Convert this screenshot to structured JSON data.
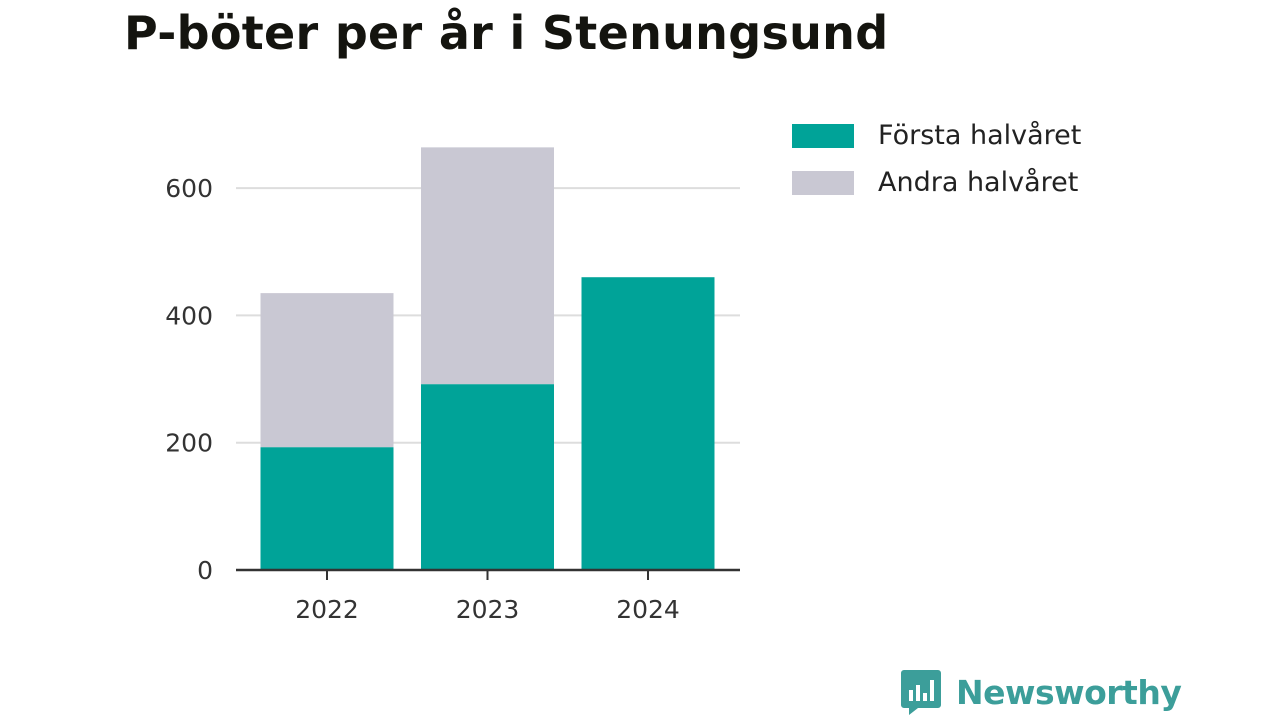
{
  "chart_data": {
    "type": "bar",
    "stacked": true,
    "title": "P-böter per år i Stenungsund",
    "categories": [
      "2022",
      "2023",
      "2024"
    ],
    "series": [
      {
        "name": "Första halvåret",
        "values": [
          193,
          292,
          460
        ],
        "color": "#00a398"
      },
      {
        "name": "Andra halvåret",
        "values": [
          242,
          372,
          0
        ],
        "color": "#c9c8d3"
      }
    ],
    "ylim": [
      0,
      700
    ],
    "yticks": [
      0,
      200,
      400,
      600
    ],
    "grid": true,
    "legend_position": "top-right",
    "xlabel": "",
    "ylabel": ""
  },
  "brand": {
    "name": "Newsworthy",
    "color": "#3c9e9a"
  }
}
